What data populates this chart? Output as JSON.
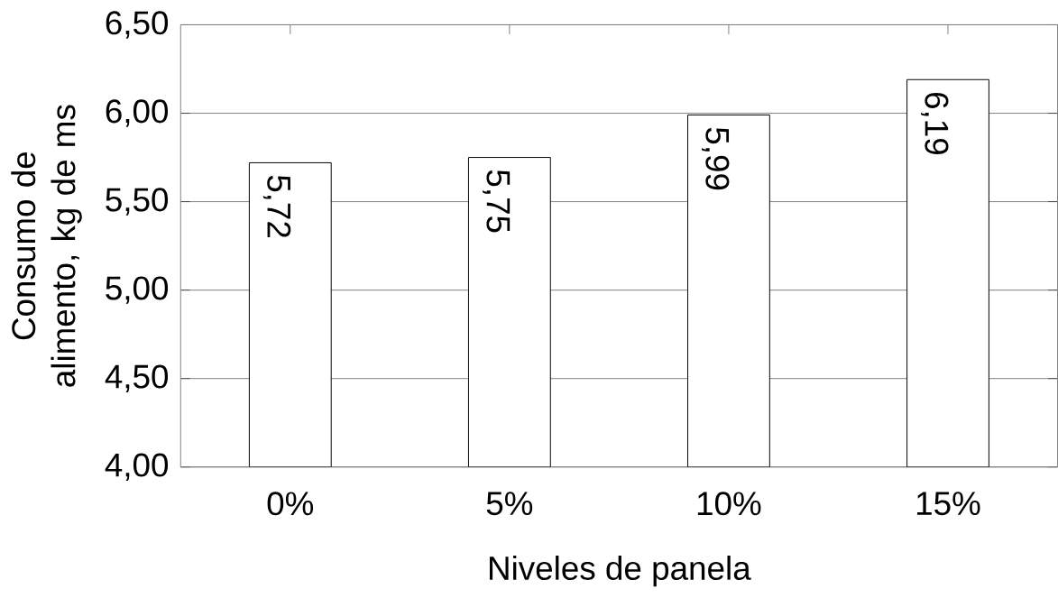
{
  "chart_data": {
    "type": "bar",
    "xlabel": "Niveles de panela",
    "ylabel": "Consumo de alimento, kg de ms",
    "categories": [
      "0%",
      "5%",
      "10%",
      "15%"
    ],
    "values": [
      5.72,
      5.75,
      5.99,
      6.19
    ],
    "value_labels": [
      "5,72",
      "5,75",
      "5,99",
      "6,19"
    ],
    "color": "#ffffff",
    "ylim": [
      4,
      6.5
    ],
    "yticks": [
      {
        "value": 4,
        "label": "4,00"
      },
      {
        "value": 4.5,
        "label": "4,50"
      },
      {
        "value": 5,
        "label": "5,00"
      },
      {
        "value": 5.5,
        "label": "5,50"
      },
      {
        "value": 6,
        "label": "6,00"
      },
      {
        "value": 6.5,
        "label": "6,50"
      }
    ],
    "grid": "y"
  }
}
